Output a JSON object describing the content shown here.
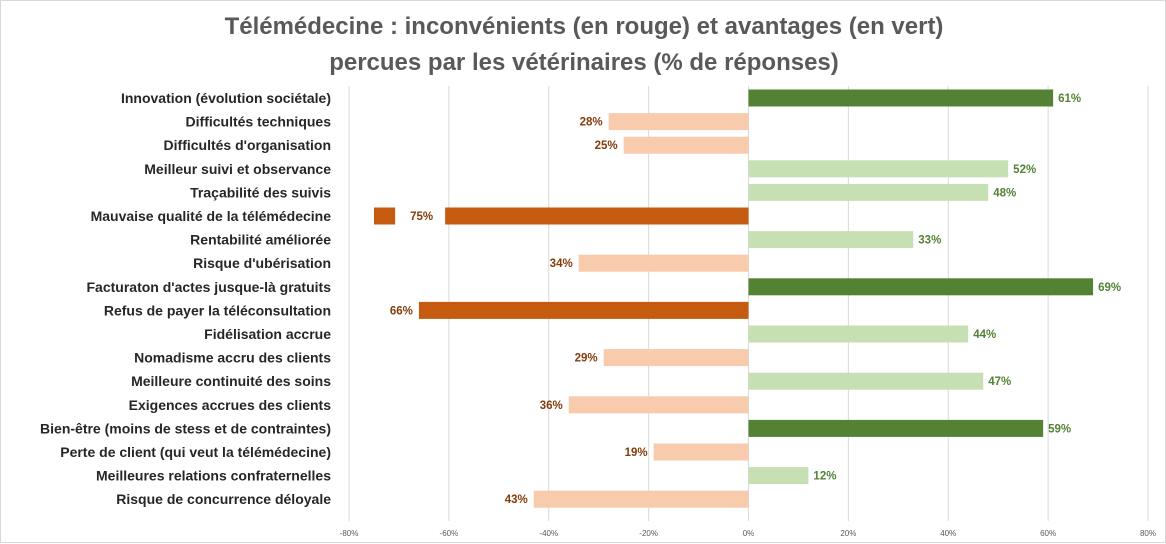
{
  "chart_data": {
    "type": "bar",
    "orientation": "horizontal",
    "title_lines": [
      "Télémédecine : inconvénients (en rouge) et avantages (en vert)",
      "percues par les vétérinaires (% de réponses)"
    ],
    "xlim": [
      -80,
      80
    ],
    "x_ticks": [
      -80,
      -60,
      -40,
      -20,
      0,
      20,
      40,
      60,
      80
    ],
    "x_tick_labels": [
      "-80%",
      "-60%",
      "-40%",
      "-20%",
      "0%",
      "20%",
      "40%",
      "60%",
      "80%"
    ],
    "grid": "vertical",
    "colors": {
      "avantage_fort": "#548235",
      "avantage_faible": "#c6e0b4",
      "inconvenient_fort": "#c55a11",
      "inconvenient_faible": "#f8cbad",
      "label_avantage": "#548235",
      "label_inconvenient": "#843c0c"
    },
    "categories": [
      "Innovation (évolution sociétale)",
      "Difficultés techniques",
      "Difficultés d'organisation",
      "Meilleur suivi et observance",
      "Traçabilité des suivis",
      "Mauvaise qualité de la télémédecine",
      "Rentabilité améliorée",
      "Risque d'ubérisation",
      "Facturaton d'actes jusque-là gratuits",
      "Refus de payer la téléconsultation",
      "Fidélisation accrue",
      "Nomadisme accru des clients",
      "Meilleure continuité des soins",
      "Exigences accrues des clients",
      "Bien-être (moins de stess et de contraintes)",
      "Perte de client (qui veut la télémédecine)",
      "Meilleures relations confraternelles",
      "Risque de concurrence déloyale"
    ],
    "values": [
      61,
      -28,
      -25,
      52,
      48,
      -75,
      33,
      -34,
      69,
      -66,
      44,
      -29,
      47,
      -36,
      59,
      -19,
      12,
      -43
    ],
    "value_labels": [
      "61%",
      "28%",
      "25%",
      "52%",
      "48%",
      "75%",
      "33%",
      "34%",
      "69%",
      "66%",
      "44%",
      "29%",
      "47%",
      "36%",
      "59%",
      "19%",
      "12%",
      "43%"
    ],
    "emphasis": [
      "fort",
      "faible",
      "faible",
      "faible",
      "faible",
      "fort",
      "faible",
      "faible",
      "fort",
      "fort",
      "faible",
      "faible",
      "faible",
      "faible",
      "fort",
      "faible",
      "faible",
      "faible"
    ]
  }
}
